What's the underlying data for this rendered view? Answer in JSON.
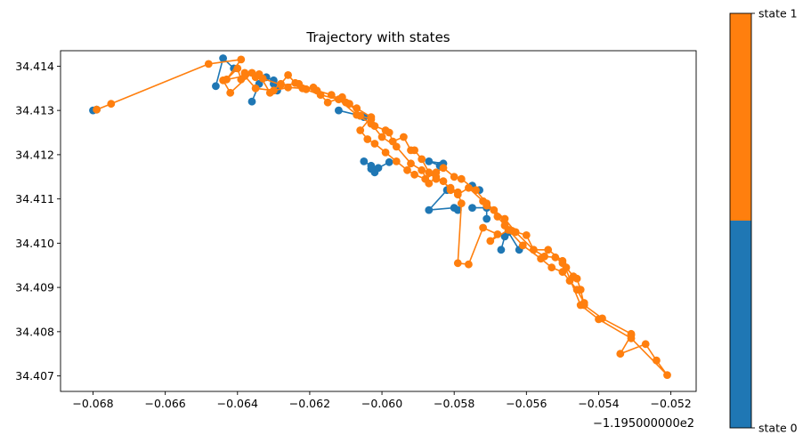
{
  "chart_data": {
    "type": "line",
    "title": "Trajectory with states",
    "xlabel": "",
    "ylabel": "",
    "x_offset_label": "−1.195000000e2",
    "xlim": [
      -0.0689,
      -0.0513
    ],
    "ylim": [
      34.40665,
      34.41435
    ],
    "x_ticks": [
      -0.068,
      -0.066,
      -0.064,
      -0.062,
      -0.06,
      -0.058,
      -0.056,
      -0.054,
      -0.052
    ],
    "x_tick_labels": [
      "−0.068",
      "−0.066",
      "−0.064",
      "−0.062",
      "−0.060",
      "−0.058",
      "−0.056",
      "−0.054",
      "−0.052"
    ],
    "y_ticks": [
      34.407,
      34.408,
      34.409,
      34.41,
      34.411,
      34.412,
      34.413,
      34.414
    ],
    "y_tick_labels": [
      "34.407",
      "34.408",
      "34.409",
      "34.410",
      "34.411",
      "34.412",
      "34.413",
      "34.414"
    ],
    "grid": false,
    "colorbar": {
      "labels": [
        "state 0",
        "state 1"
      ],
      "colors": [
        "#1f77b4",
        "#ff7f0e"
      ],
      "split": 0.5
    },
    "series": [
      {
        "state": 0,
        "color": "#1f77b4",
        "segments": [
          [
            [
              -0.068,
              34.413
            ],
            [
              -0.0679,
              34.41302
            ]
          ],
          [
            [
              -0.0646,
              34.41355
            ],
            [
              -0.0644,
              34.41418
            ],
            [
              -0.0641,
              34.41395
            ]
          ],
          [
            [
              -0.0636,
              34.4132
            ],
            [
              -0.0634,
              34.4136
            ],
            [
              -0.0632,
              34.41375
            ],
            [
              -0.063,
              34.41368
            ],
            [
              -0.0629,
              34.41345
            ],
            [
              -0.063,
              34.4136
            ]
          ],
          [
            [
              -0.0612,
              34.413
            ],
            [
              -0.0606,
              34.41288
            ],
            [
              -0.0605,
              34.41285
            ]
          ],
          [
            [
              -0.0605,
              34.41185
            ],
            [
              -0.0603,
              34.41175
            ],
            [
              -0.0602,
              34.4116
            ]
          ],
          [
            [
              -0.0598,
              34.41183
            ],
            [
              -0.0601,
              34.4117
            ],
            [
              -0.0603,
              34.41168
            ]
          ],
          [
            [
              -0.0583,
              34.4118
            ],
            [
              -0.0587,
              34.41185
            ],
            [
              -0.0584,
              34.41175
            ]
          ],
          [
            [
              -0.0582,
              34.4112
            ],
            [
              -0.0587,
              34.41075
            ],
            [
              -0.058,
              34.4108
            ],
            [
              -0.0579,
              34.41075
            ]
          ],
          [
            [
              -0.0575,
              34.4113
            ],
            [
              -0.0573,
              34.4112
            ]
          ],
          [
            [
              -0.0571,
              34.41055
            ],
            [
              -0.0571,
              34.4108
            ],
            [
              -0.0575,
              34.4108
            ]
          ],
          [
            [
              -0.0567,
              34.40985
            ],
            [
              -0.0566,
              34.41015
            ],
            [
              -0.0565,
              34.41025
            ],
            [
              -0.0562,
              34.40985
            ]
          ]
        ]
      },
      {
        "state": 1,
        "color": "#ff7f0e",
        "path": [
          [
            -0.0679,
            34.41302
          ],
          [
            -0.0675,
            34.41315
          ],
          [
            -0.0648,
            34.41405
          ],
          [
            -0.0639,
            34.41415
          ],
          [
            -0.0643,
            34.4137
          ],
          [
            -0.064,
            34.41395
          ],
          [
            -0.0639,
            34.4137
          ],
          [
            -0.0638,
            34.41385
          ],
          [
            -0.0635,
            34.41375
          ],
          [
            -0.0634,
            34.41382
          ],
          [
            -0.0631,
            34.4134
          ],
          [
            -0.0628,
            34.4136
          ],
          [
            -0.0626,
            34.4138
          ],
          [
            -0.0624,
            34.41362
          ],
          [
            -0.0621,
            34.41348
          ],
          [
            -0.0619,
            34.41352
          ],
          [
            -0.0615,
            34.41318
          ],
          [
            -0.0611,
            34.4133
          ],
          [
            -0.0609,
            34.41315
          ],
          [
            -0.0606,
            34.41288
          ],
          [
            -0.0603,
            34.4128
          ],
          [
            -0.0602,
            34.41265
          ],
          [
            -0.0599,
            34.41255
          ],
          [
            -0.0598,
            34.4125
          ],
          [
            -0.0597,
            34.4123
          ],
          [
            -0.0594,
            34.4124
          ],
          [
            -0.0592,
            34.4121
          ],
          [
            -0.0591,
            34.4121
          ],
          [
            -0.0589,
            34.4119
          ],
          [
            -0.0587,
            34.4116
          ],
          [
            -0.0585,
            34.41145
          ],
          [
            -0.0583,
            34.4114
          ],
          [
            -0.0581,
            34.4112
          ],
          [
            -0.0579,
            34.4111
          ],
          [
            -0.0576,
            34.41125
          ],
          [
            -0.0572,
            34.41095
          ],
          [
            -0.0571,
            34.41085
          ],
          [
            -0.0568,
            34.4106
          ],
          [
            -0.0566,
            34.4104
          ],
          [
            -0.0564,
            34.41028
          ],
          [
            -0.056,
            34.41018
          ],
          [
            -0.0558,
            34.40985
          ],
          [
            -0.0555,
            34.4097
          ],
          [
            -0.0552,
            34.40968
          ],
          [
            -0.055,
            34.40955
          ],
          [
            -0.0549,
            34.40945
          ],
          [
            -0.0547,
            34.40925
          ],
          [
            -0.0546,
            34.4092
          ],
          [
            -0.0545,
            34.40895
          ],
          [
            -0.0544,
            34.4086
          ],
          [
            -0.0539,
            34.4083
          ],
          [
            -0.0531,
            34.40795
          ],
          [
            -0.0531,
            34.40792
          ],
          [
            -0.0534,
            34.4075
          ],
          [
            -0.0527,
            34.40772
          ],
          [
            -0.0524,
            34.40735
          ],
          [
            -0.0521,
            34.40702
          ],
          [
            -0.0531,
            34.40785
          ],
          [
            -0.054,
            34.40828
          ],
          [
            -0.0545,
            34.4086
          ],
          [
            -0.055,
            34.4096
          ],
          [
            -0.0554,
            34.40985
          ],
          [
            -0.0558,
            34.40985
          ],
          [
            -0.0563,
            34.41025
          ],
          [
            -0.0566,
            34.41055
          ],
          [
            -0.0569,
            34.41075
          ],
          [
            -0.0571,
            34.4109
          ],
          [
            -0.0574,
            34.4112
          ],
          [
            -0.0578,
            34.41145
          ],
          [
            -0.058,
            34.4115
          ],
          [
            -0.0583,
            34.4117
          ],
          [
            -0.0585,
            34.4116
          ],
          [
            -0.0588,
            34.41145
          ],
          [
            -0.0591,
            34.41155
          ],
          [
            -0.0593,
            34.41165
          ],
          [
            -0.0596,
            34.41185
          ],
          [
            -0.0599,
            34.41205
          ],
          [
            -0.0602,
            34.41225
          ],
          [
            -0.0604,
            34.41235
          ],
          [
            -0.0606,
            34.41255
          ],
          [
            -0.0603,
            34.41285
          ],
          [
            -0.0607,
            34.41305
          ],
          [
            -0.061,
            34.41318
          ],
          [
            -0.0614,
            34.41335
          ],
          [
            -0.0618,
            34.41345
          ],
          [
            -0.0623,
            34.4136
          ],
          [
            -0.0628,
            34.41358
          ],
          [
            -0.0633,
            34.41372
          ],
          [
            -0.0636,
            34.41385
          ],
          [
            -0.0642,
            34.4134
          ],
          [
            -0.0644,
            34.41368
          ],
          [
            -0.0638,
            34.41378
          ],
          [
            -0.0635,
            34.4135
          ],
          [
            -0.063,
            34.41345
          ],
          [
            -0.0626,
            34.41352
          ],
          [
            -0.0622,
            34.4135
          ],
          [
            -0.0617,
            34.41335
          ],
          [
            -0.0612,
            34.41325
          ],
          [
            -0.0607,
            34.4129
          ],
          [
            -0.0603,
            34.4127
          ],
          [
            -0.06,
            34.4124
          ],
          [
            -0.0596,
            34.41218
          ],
          [
            -0.0592,
            34.4118
          ],
          [
            -0.0589,
            34.41165
          ],
          [
            -0.0587,
            34.41135
          ],
          [
            -0.0585,
            34.4115
          ],
          [
            -0.0581,
            34.41125
          ],
          [
            -0.0579,
            34.41115
          ],
          [
            -0.0578,
            34.4109
          ],
          [
            -0.0579,
            34.40955
          ],
          [
            -0.0576,
            34.40952
          ],
          [
            -0.0572,
            34.41035
          ],
          [
            -0.0568,
            34.4102
          ],
          [
            -0.057,
            34.41005
          ],
          [
            -0.0565,
            34.4103
          ],
          [
            -0.0561,
            34.40995
          ],
          [
            -0.0556,
            34.40965
          ],
          [
            -0.0553,
            34.40945
          ],
          [
            -0.055,
            34.40935
          ],
          [
            -0.0548,
            34.40915
          ],
          [
            -0.0546,
            34.40895
          ],
          [
            -0.0544,
            34.40865
          ]
        ]
      }
    ]
  }
}
